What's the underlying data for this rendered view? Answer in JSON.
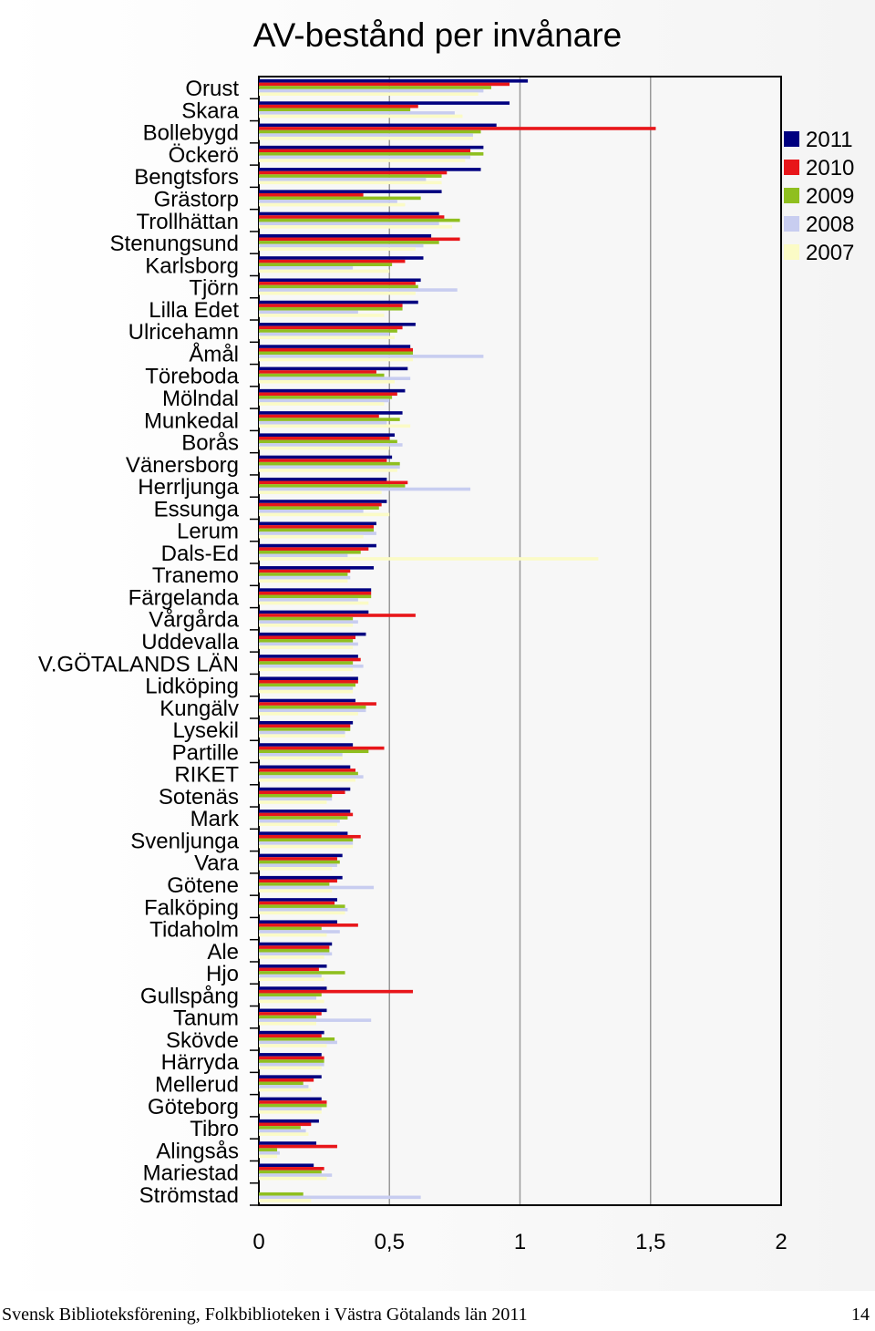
{
  "chart_data": {
    "type": "bar",
    "orientation": "horizontal",
    "title": "AV-bestånd per invånare",
    "xlim": [
      0,
      2
    ],
    "xticks": [
      "0",
      "0,5",
      "1",
      "1,5",
      "2"
    ],
    "grid": true,
    "legend_position": "right",
    "categories": [
      "Orust",
      "Skara",
      "Bollebygd",
      "Öckerö",
      "Bengtsfors",
      "Grästorp",
      "Trollhättan",
      "Stenungsund",
      "Karlsborg",
      "Tjörn",
      "Lilla Edet",
      "Ulricehamn",
      "Åmål",
      "Töreboda",
      "Mölndal",
      "Munkedal",
      "Borås",
      "Vänersborg",
      "Herrljunga",
      "Essunga",
      "Lerum",
      "Dals-Ed",
      "Tranemo",
      "Färgelanda",
      "Vårgårda",
      "Uddevalla",
      "V.GÖTALANDS LÄN",
      "Lidköping",
      "Kungälv",
      "Lysekil",
      "Partille",
      "RIKET",
      "Sotenäs",
      "Mark",
      "Svenljunga",
      "Vara",
      "Götene",
      "Falköping",
      "Tidaholm",
      "Ale",
      "Hjo",
      "Gullspång",
      "Tanum",
      "Skövde",
      "Härryda",
      "Mellerud",
      "Göteborg",
      "Tibro",
      "Alingsås",
      "Mariestad",
      "Strömstad"
    ],
    "series": [
      {
        "name": "2011",
        "color": "#000080",
        "values": [
          1.03,
          0.96,
          0.91,
          0.86,
          0.85,
          0.7,
          0.69,
          0.66,
          0.63,
          0.62,
          0.61,
          0.6,
          0.58,
          0.57,
          0.56,
          0.55,
          0.52,
          0.51,
          0.49,
          0.49,
          0.45,
          0.45,
          0.44,
          0.43,
          0.42,
          0.41,
          0.38,
          0.38,
          0.37,
          0.36,
          0.36,
          0.35,
          0.35,
          0.35,
          0.34,
          0.32,
          0.32,
          0.3,
          0.3,
          0.28,
          0.26,
          0.26,
          0.26,
          0.25,
          0.24,
          0.24,
          0.24,
          0.23,
          0.22,
          0.21,
          0
        ]
      },
      {
        "name": "2010",
        "color": "#e8161a",
        "values": [
          0.96,
          0.61,
          1.52,
          0.81,
          0.72,
          0.4,
          0.71,
          0.77,
          0.56,
          0.6,
          0.55,
          0.55,
          0.59,
          0.45,
          0.53,
          0.46,
          0.5,
          0.49,
          0.57,
          0.47,
          0.44,
          0.42,
          0.35,
          0.43,
          0.6,
          0.37,
          0.39,
          0.38,
          0.45,
          0.35,
          0.48,
          0.37,
          0.33,
          0.36,
          0.39,
          0.3,
          0.3,
          0.29,
          0.38,
          0.27,
          0.23,
          0.59,
          0.24,
          0.24,
          0.25,
          0.21,
          0.26,
          0.2,
          0.3,
          0.25,
          0
        ]
      },
      {
        "name": "2009",
        "color": "#8fbf1f",
        "values": [
          0.89,
          0.58,
          0.85,
          0.86,
          0.7,
          0.62,
          0.77,
          0.69,
          0.51,
          0.61,
          0.55,
          0.53,
          0.59,
          0.48,
          0.51,
          0.54,
          0.53,
          0.54,
          0.56,
          0.46,
          0.44,
          0.39,
          0.34,
          0.43,
          0.36,
          0.36,
          0.36,
          0.37,
          0.41,
          0.35,
          0.42,
          0.38,
          0.28,
          0.34,
          0.36,
          0.31,
          0.27,
          0.33,
          0.24,
          0.27,
          0.33,
          0.24,
          0.22,
          0.29,
          0.25,
          0.17,
          0.26,
          0.16,
          0.07,
          0.24,
          0.17
        ]
      },
      {
        "name": "2008",
        "color": "#c8cdf0",
        "values": [
          0.86,
          0.75,
          0.82,
          0.81,
          0.64,
          0.53,
          0.69,
          0.63,
          0.36,
          0.76,
          0.38,
          0.5,
          0.86,
          0.58,
          0.5,
          0.49,
          0.55,
          0.54,
          0.81,
          0.4,
          0.45,
          0.34,
          0.35,
          0.38,
          0.38,
          0.38,
          0.4,
          0.36,
          0.41,
          0.33,
          0.32,
          0.4,
          0.28,
          0.31,
          0.36,
          0.3,
          0.44,
          0.34,
          0.31,
          0.28,
          0.24,
          0.22,
          0.43,
          0.3,
          0.25,
          0.19,
          0.24,
          0.18,
          0.08,
          0.28,
          0.62
        ]
      },
      {
        "name": "2007",
        "color": "#fbfbc6",
        "values": [
          0.84,
          0.78,
          0.82,
          0.79,
          0.7,
          0.56,
          0.74,
          0.6,
          0.5,
          0.6,
          0.48,
          0.52,
          0.59,
          0.52,
          0.48,
          0.58,
          0.5,
          0.53,
          0.47,
          0.5,
          0.4,
          1.3,
          0.34,
          0.42,
          0.36,
          0.36,
          0.36,
          0.36,
          0.38,
          0.33,
          0.32,
          0.37,
          0.26,
          0.3,
          0.36,
          0.28,
          0.28,
          0.33,
          0.26,
          0.25,
          0.25,
          0.25,
          0.22,
          0.26,
          0.24,
          0.2,
          0.24,
          0.19,
          0.07,
          0.26,
          0.2
        ]
      }
    ]
  },
  "footer": {
    "text": "Svensk Biblioteksförening, Folkbiblioteken i Västra Götalands län 2011",
    "page": "14"
  }
}
